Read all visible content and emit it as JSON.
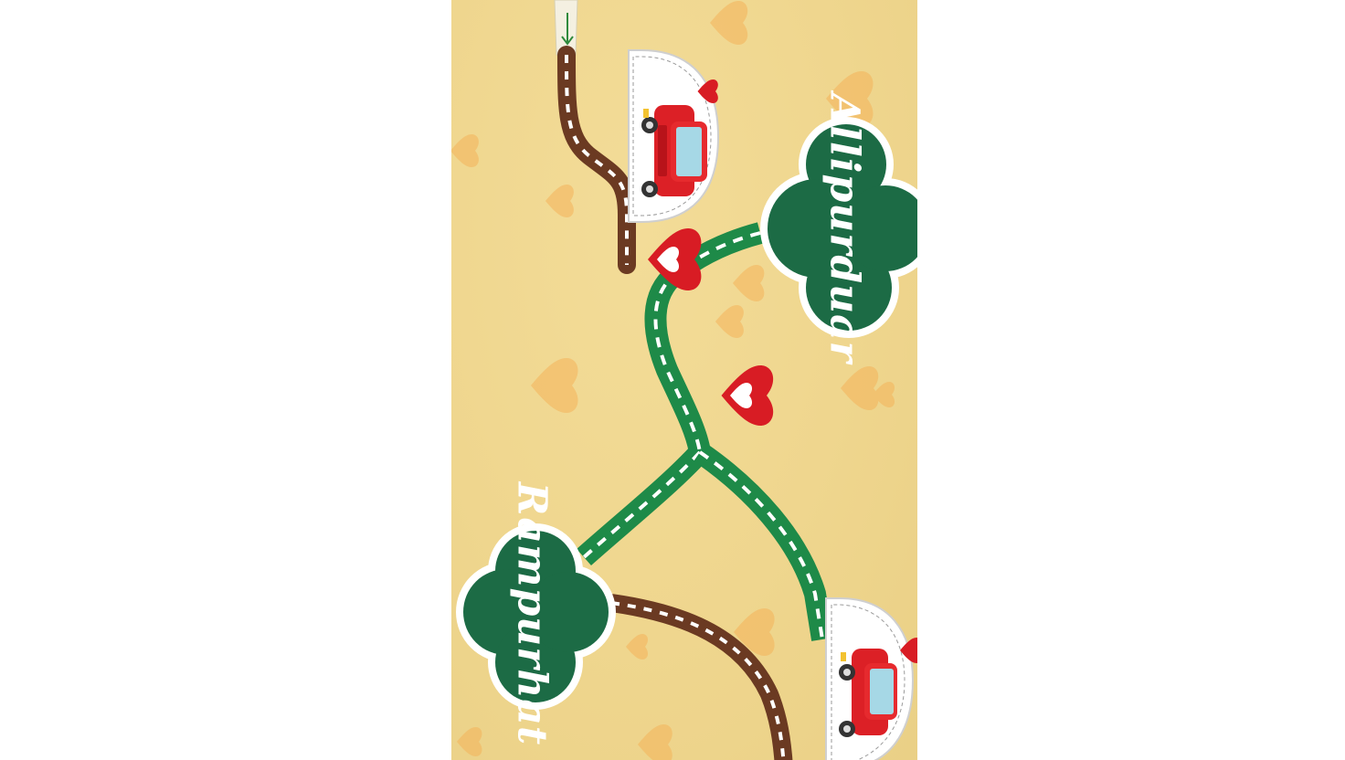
{
  "board": {
    "cities": [
      {
        "id": "alipurduar",
        "label": "Allipurduar"
      },
      {
        "id": "rampurhat",
        "label": "Rampurhat"
      }
    ]
  },
  "colors": {
    "background": "#efd68e",
    "green_road": "#1e8a48",
    "brown_road": "#6b3a22",
    "cloud_fill": "#1c6b45",
    "heart_pin": "#d81c24",
    "car": "#dc2026"
  },
  "icons": [
    "car-icon",
    "heart-pin-icon",
    "start-arrow-icon",
    "background-heart-icon"
  ]
}
